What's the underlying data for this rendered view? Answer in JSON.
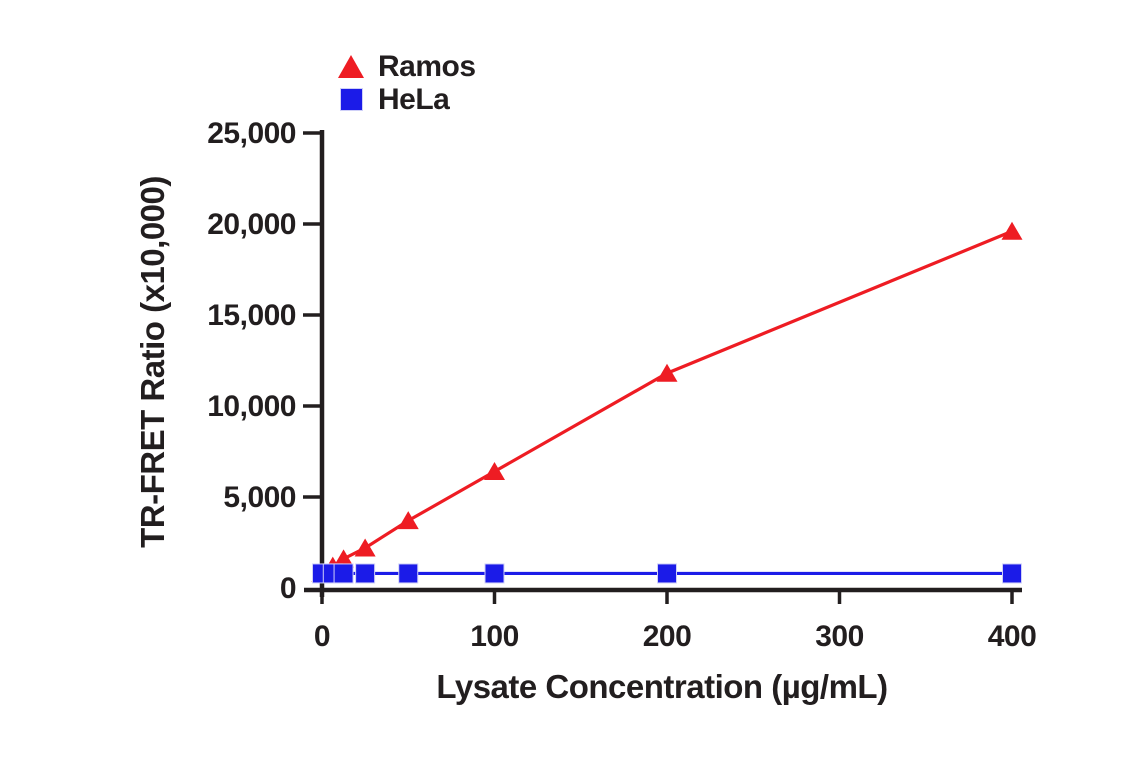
{
  "chart_data": {
    "type": "line",
    "title": "",
    "xlabel": "Lysate Concentration (µg/mL)",
    "ylabel": "TR-FRET Ratio (x10,000)",
    "x": [
      0,
      6.25,
      12.5,
      25,
      50,
      100,
      200,
      400
    ],
    "series": [
      {
        "name": "Ramos",
        "marker": "triangle",
        "color": "#ee1c23",
        "values": [
          800,
          1200,
          1600,
          2200,
          3700,
          6400,
          11800,
          19600
        ]
      },
      {
        "name": "HeLa",
        "marker": "square",
        "color": "#1b1be8",
        "values": [
          800,
          800,
          800,
          800,
          800,
          800,
          800,
          800
        ]
      }
    ],
    "xticks": [
      0,
      100,
      200,
      300,
      400
    ],
    "xtick_labels": [
      "0",
      "100",
      "200",
      "300",
      "400"
    ],
    "yticks": [
      0,
      5000,
      10000,
      15000,
      20000,
      25000
    ],
    "ytick_labels": [
      "0",
      "5,000",
      "10,000",
      "15,000",
      "20,000",
      "25,000"
    ],
    "xlim": [
      0,
      405
    ],
    "ylim": [
      0,
      25000
    ],
    "grid": false,
    "legend_position": "top-inside-left"
  },
  "colors": {
    "ramos_red": "#ee1c23",
    "hela_blue": "#1b1be8",
    "axis_black": "#221e1f",
    "background": "#ffffff"
  }
}
